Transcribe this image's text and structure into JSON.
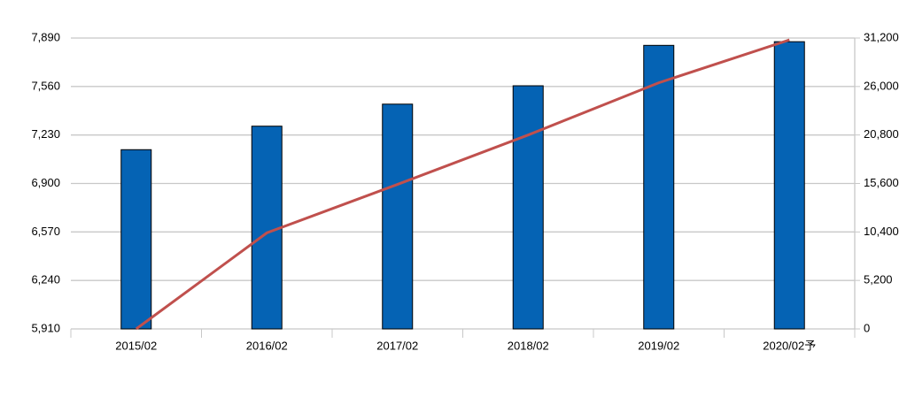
{
  "chart_data": {
    "type": "bar_line",
    "categories": [
      "2015/02",
      "2016/02",
      "2017/02",
      "2018/02",
      "2019/02",
      "2020/02予"
    ],
    "series": [
      {
        "type": "bar",
        "color": "#0563b4",
        "values": [
          7130,
          7290,
          7440,
          7565,
          7840,
          7865
        ]
      },
      {
        "type": "line",
        "axis": "y2",
        "color": "#c0504d",
        "values": [
          0,
          10300,
          15500,
          20800,
          26400,
          31000
        ]
      }
    ],
    "ylim": [
      5910,
      7890
    ],
    "yticks": [
      {
        "value": 5910,
        "label": "5,910"
      },
      {
        "value": 6240,
        "label": "6,240"
      },
      {
        "value": 6570,
        "label": "6,570"
      },
      {
        "value": 6900,
        "label": "6,900"
      },
      {
        "value": 7230,
        "label": "7,230"
      },
      {
        "value": 7560,
        "label": "7,560"
      },
      {
        "value": 7890,
        "label": "7,890"
      }
    ],
    "y2lim": [
      0,
      31200
    ],
    "y2ticks": [
      0,
      {
        "value": 5200,
        "label": "5,200"
      },
      {
        "value": 10400,
        "label": "10,400"
      },
      {
        "value": 15600,
        "label": "15,600"
      },
      {
        "value": 20800,
        "label": "20,800"
      },
      {
        "value": 26000,
        "label": "26,000"
      },
      {
        "value": 31200,
        "label": "31,200"
      }
    ],
    "grid": true
  }
}
